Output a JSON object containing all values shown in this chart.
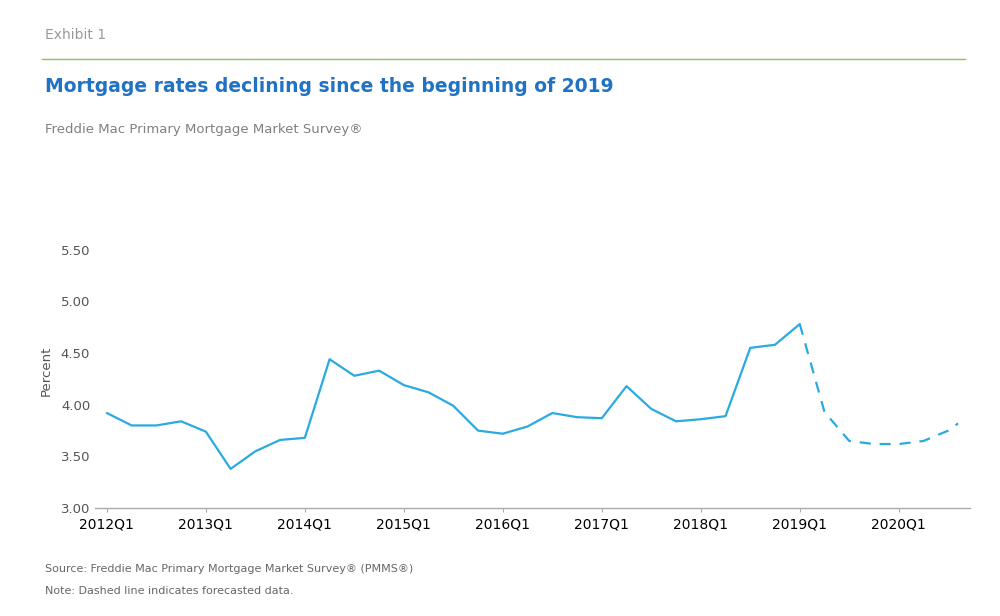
{
  "title": "Mortgage rates declining since the beginning of 2019",
  "subtitle": "Freddie Mac Primary Mortgage Market Survey®",
  "exhibit_label": "Exhibit 1",
  "ylabel": "Percent",
  "source_text": "Source: Freddie Mac Primary Mortgage Market Survey® (PMMS®)",
  "note_text": "Note: Dashed line indicates forecasted data.",
  "line_color": "#29ABE2",
  "background_color": "#ffffff",
  "ylim": [
    3.0,
    5.65
  ],
  "yticks": [
    3.0,
    3.5,
    4.0,
    4.5,
    5.0,
    5.5
  ],
  "solid_x": [
    2012.0,
    2012.25,
    2012.5,
    2012.75,
    2013.0,
    2013.25,
    2013.5,
    2013.75,
    2014.0,
    2014.25,
    2014.5,
    2014.75,
    2015.0,
    2015.25,
    2015.5,
    2015.75,
    2016.0,
    2016.25,
    2016.5,
    2016.75,
    2017.0,
    2017.25,
    2017.5,
    2017.75,
    2018.0,
    2018.25,
    2018.5,
    2018.75,
    2019.0
  ],
  "solid_y": [
    3.92,
    3.8,
    3.8,
    3.84,
    3.74,
    3.38,
    3.55,
    3.66,
    3.68,
    4.44,
    4.28,
    4.33,
    4.19,
    4.12,
    3.99,
    3.75,
    3.72,
    3.79,
    3.92,
    3.88,
    3.87,
    4.18,
    3.96,
    3.84,
    3.86,
    3.89,
    4.55,
    4.58,
    4.78
  ],
  "dashed_x": [
    2019.0,
    2019.25,
    2019.5,
    2019.75,
    2020.0,
    2020.25,
    2020.5,
    2020.6
  ],
  "dashed_y": [
    4.78,
    3.93,
    3.65,
    3.62,
    3.62,
    3.65,
    3.75,
    3.82
  ],
  "xtick_positions": [
    2012.0,
    2013.0,
    2014.0,
    2015.0,
    2016.0,
    2017.0,
    2018.0,
    2019.0,
    2020.0
  ],
  "xtick_labels": [
    "2012Q1",
    "2013Q1",
    "2014Q1",
    "2015Q1",
    "2016Q1",
    "2017Q1",
    "2018Q1",
    "2019Q1",
    "2020Q1"
  ],
  "title_color": "#1F72C4",
  "subtitle_color": "#808080",
  "exhibit_color": "#999999",
  "axis_line_color": "#aaaaaa",
  "green_line_color": "#8DC63F",
  "tick_label_color": "#555555",
  "footer_color": "#666666",
  "xlim_left": 2011.88,
  "xlim_right": 2020.72
}
